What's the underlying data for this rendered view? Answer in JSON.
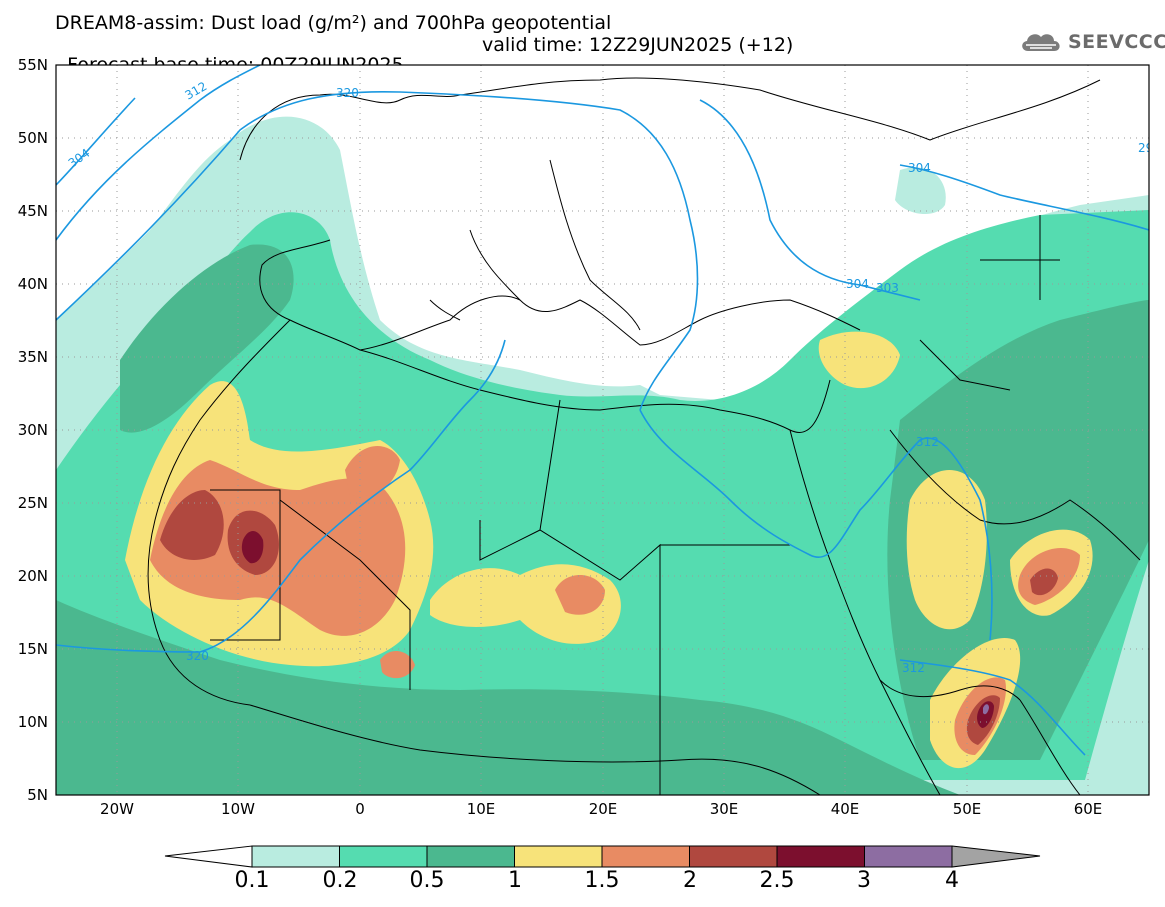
{
  "title": {
    "line1": "DREAM8-assim: Dust load (g/m²) and 700hPa geopotential",
    "line2_left": "Forecast base time: 00Z29JUN2025",
    "line2_right": "valid time: 12Z29JUN2025 (+12)"
  },
  "logo": {
    "text": "SEEVCCC",
    "icon": "cloud-icon"
  },
  "map": {
    "lon_range": [
      -25,
      65
    ],
    "lat_range": [
      5,
      55
    ],
    "lat_labels": [
      "55N",
      "50N",
      "45N",
      "40N",
      "35N",
      "30N",
      "25N",
      "20N",
      "15N",
      "10N",
      "5N"
    ],
    "lon_labels": [
      "20W",
      "10W",
      "0",
      "10E",
      "20E",
      "30E",
      "40E",
      "50E",
      "60E"
    ],
    "contour_labels": [
      "304",
      "312",
      "320",
      "304",
      "304",
      "303",
      "312",
      "312",
      "320",
      "29"
    ]
  },
  "colorbar": {
    "labels": [
      "0.1",
      "0.2",
      "0.5",
      "1",
      "1.5",
      "2",
      "2.5",
      "3",
      "4"
    ],
    "colors": [
      "#b9ece0",
      "#55dcb0",
      "#4bb88f",
      "#f7e37a",
      "#e88b63",
      "#b0483f",
      "#7c0f2e",
      "#8d6da2",
      "#a3a3a3"
    ]
  },
  "colors": {
    "contour": "#1b98e0",
    "coast": "#000000",
    "grid": "#9a9a9a"
  }
}
